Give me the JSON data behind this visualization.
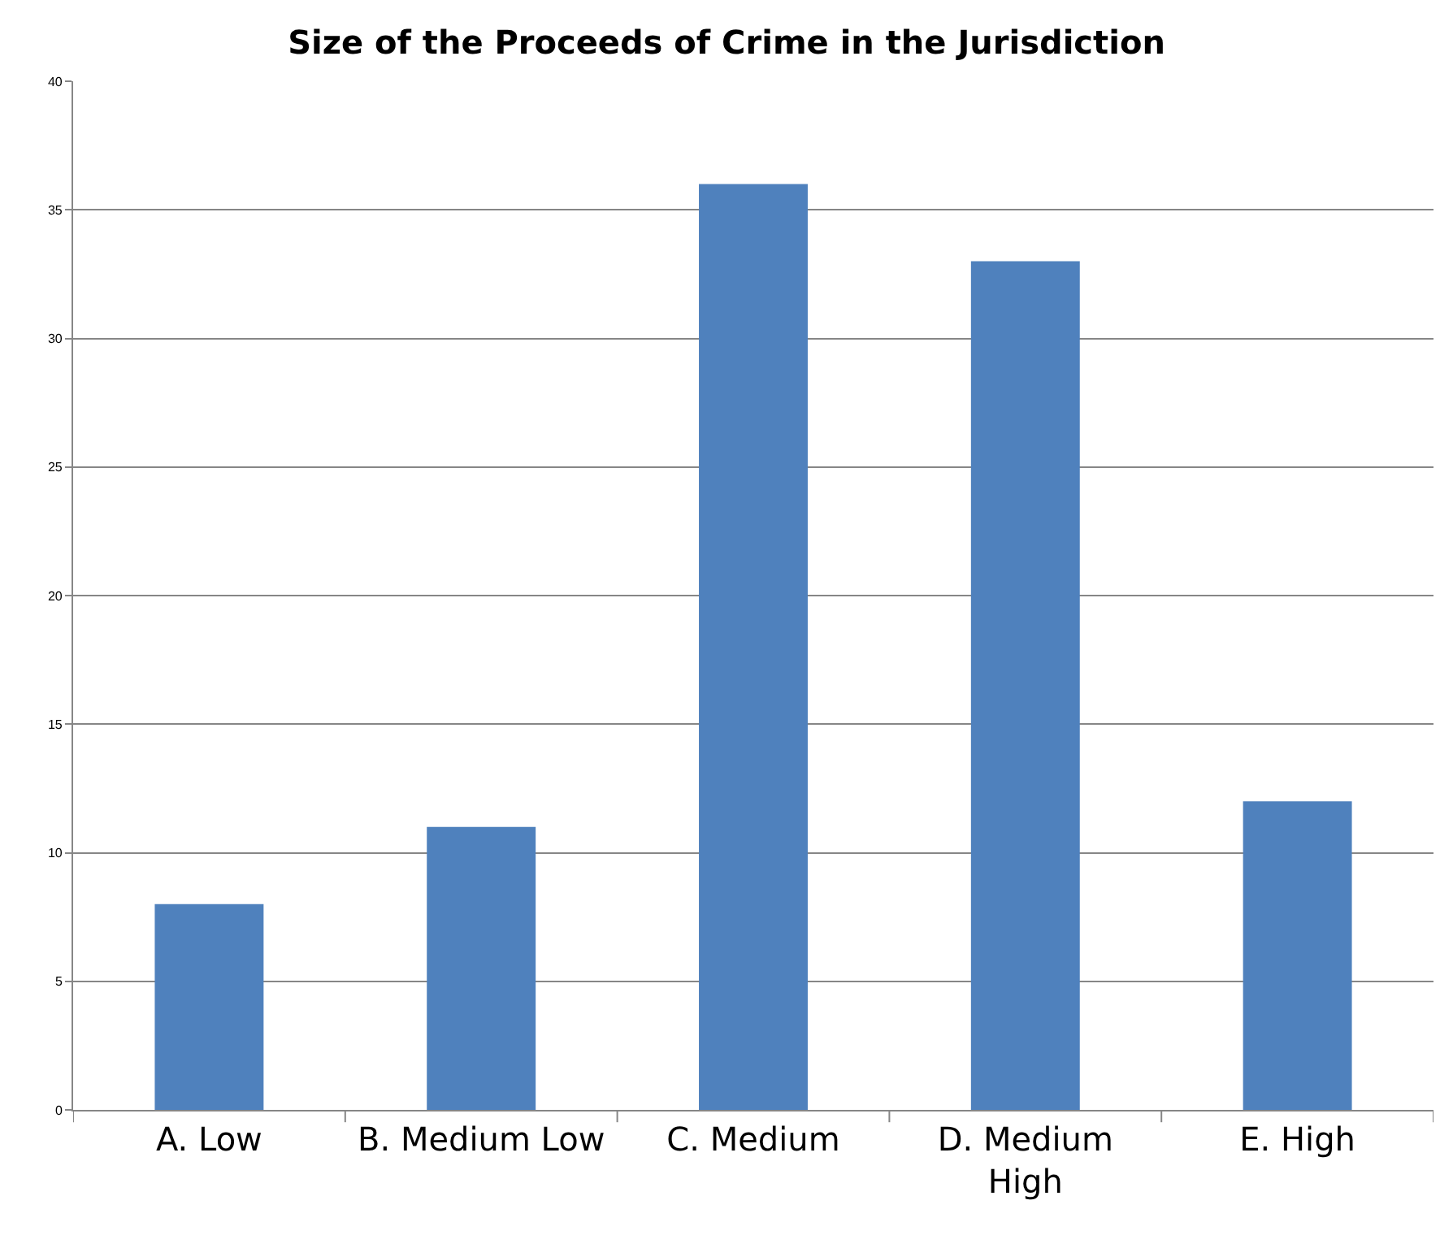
{
  "chart_data": {
    "type": "bar",
    "title": "Size of the Proceeds of Crime in the Jurisdiction",
    "categories": [
      "A. Low",
      "B. Medium Low",
      "C. Medium",
      "D. Medium High",
      "E. High"
    ],
    "values": [
      8,
      11,
      36,
      33,
      12
    ],
    "color": "#4f81bd",
    "ylim": [
      0,
      40
    ],
    "yticks": [
      0,
      5,
      10,
      15,
      20,
      25,
      30,
      35,
      40
    ],
    "grid": "y"
  }
}
